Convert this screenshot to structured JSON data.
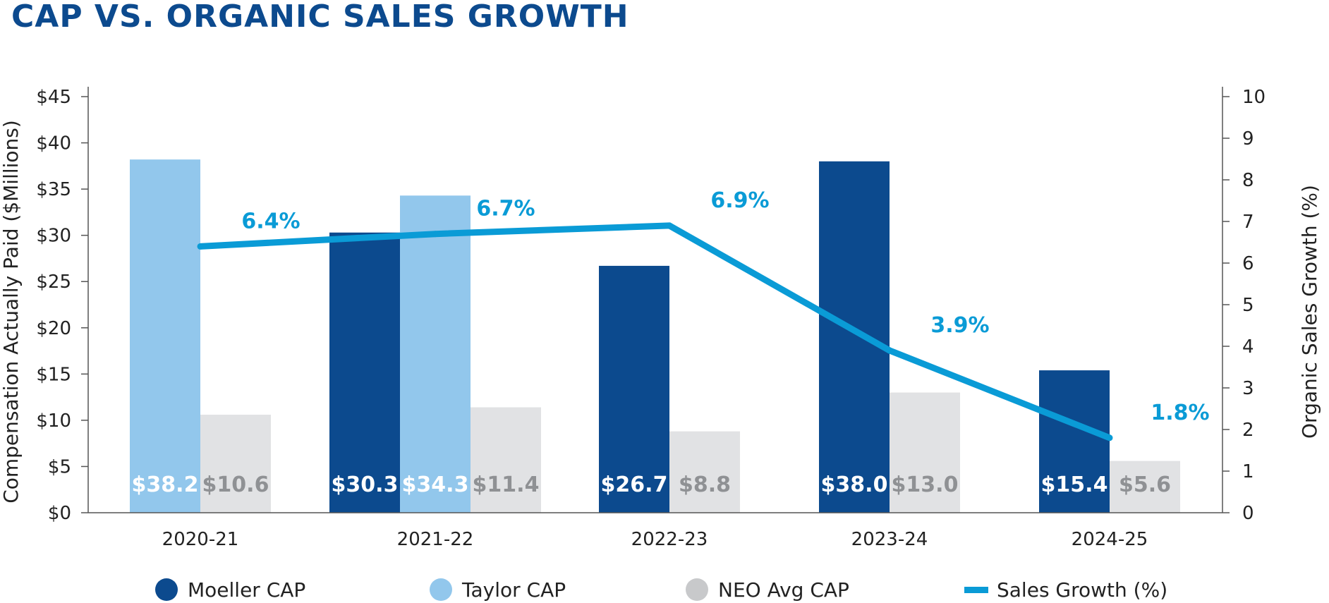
{
  "colors": {
    "title": "#0c4a8e",
    "moeller": "#0c4a8e",
    "taylor": "#92c7ec",
    "neo": "#e1e2e4",
    "growth": "#0a9bd6",
    "neo_label": "#8f9194",
    "legend_neo": "#c8c9cb"
  },
  "chart_data": {
    "type": "bar",
    "title": "CAP VS. ORGANIC SALES GROWTH",
    "categories": [
      "2020-21",
      "2021-22",
      "2022-23",
      "2023-24",
      "2024-25"
    ],
    "ylabel": "Compensation Actually Paid ($Millions)",
    "ylim": [
      0,
      45
    ],
    "yticks": [
      0,
      5,
      10,
      15,
      20,
      25,
      30,
      35,
      40,
      45
    ],
    "ytick_labels": [
      "$0",
      "$5",
      "$10",
      "$15",
      "$20",
      "$25",
      "$30",
      "$35",
      "$40",
      "$45"
    ],
    "y2label": "Organic Sales Growth (%)",
    "y2lim": [
      0,
      10
    ],
    "y2ticks": [
      0,
      1,
      2,
      3,
      4,
      5,
      6,
      7,
      8,
      9,
      10
    ],
    "y2tick_labels": [
      "0",
      "1",
      "2",
      "3",
      "4",
      "5",
      "6",
      "7",
      "8",
      "9",
      "10"
    ],
    "grid": false,
    "legend_position": "bottom",
    "series": [
      {
        "name": "Moeller CAP",
        "type": "bar",
        "values": [
          null,
          30.3,
          26.7,
          38.0,
          15.4
        ],
        "labels": [
          "",
          "$30.3",
          "$26.7",
          "$38.0",
          "$15.4"
        ]
      },
      {
        "name": "Taylor CAP",
        "type": "bar",
        "values": [
          38.2,
          34.3,
          null,
          null,
          null
        ],
        "labels": [
          "$38.2",
          "$34.3",
          "",
          "",
          ""
        ]
      },
      {
        "name": "NEO Avg CAP",
        "type": "bar",
        "values": [
          10.6,
          11.4,
          8.8,
          13.0,
          5.6
        ],
        "labels": [
          "$10.6",
          "$11.4",
          "$8.8",
          "$13.0",
          "$5.6"
        ]
      },
      {
        "name": "Sales Growth (%)",
        "type": "line",
        "axis": "right",
        "values": [
          6.4,
          6.7,
          6.9,
          3.9,
          1.8
        ],
        "labels": [
          "6.4%",
          "6.7%",
          "6.9%",
          "3.9%",
          "1.8%"
        ]
      }
    ]
  }
}
